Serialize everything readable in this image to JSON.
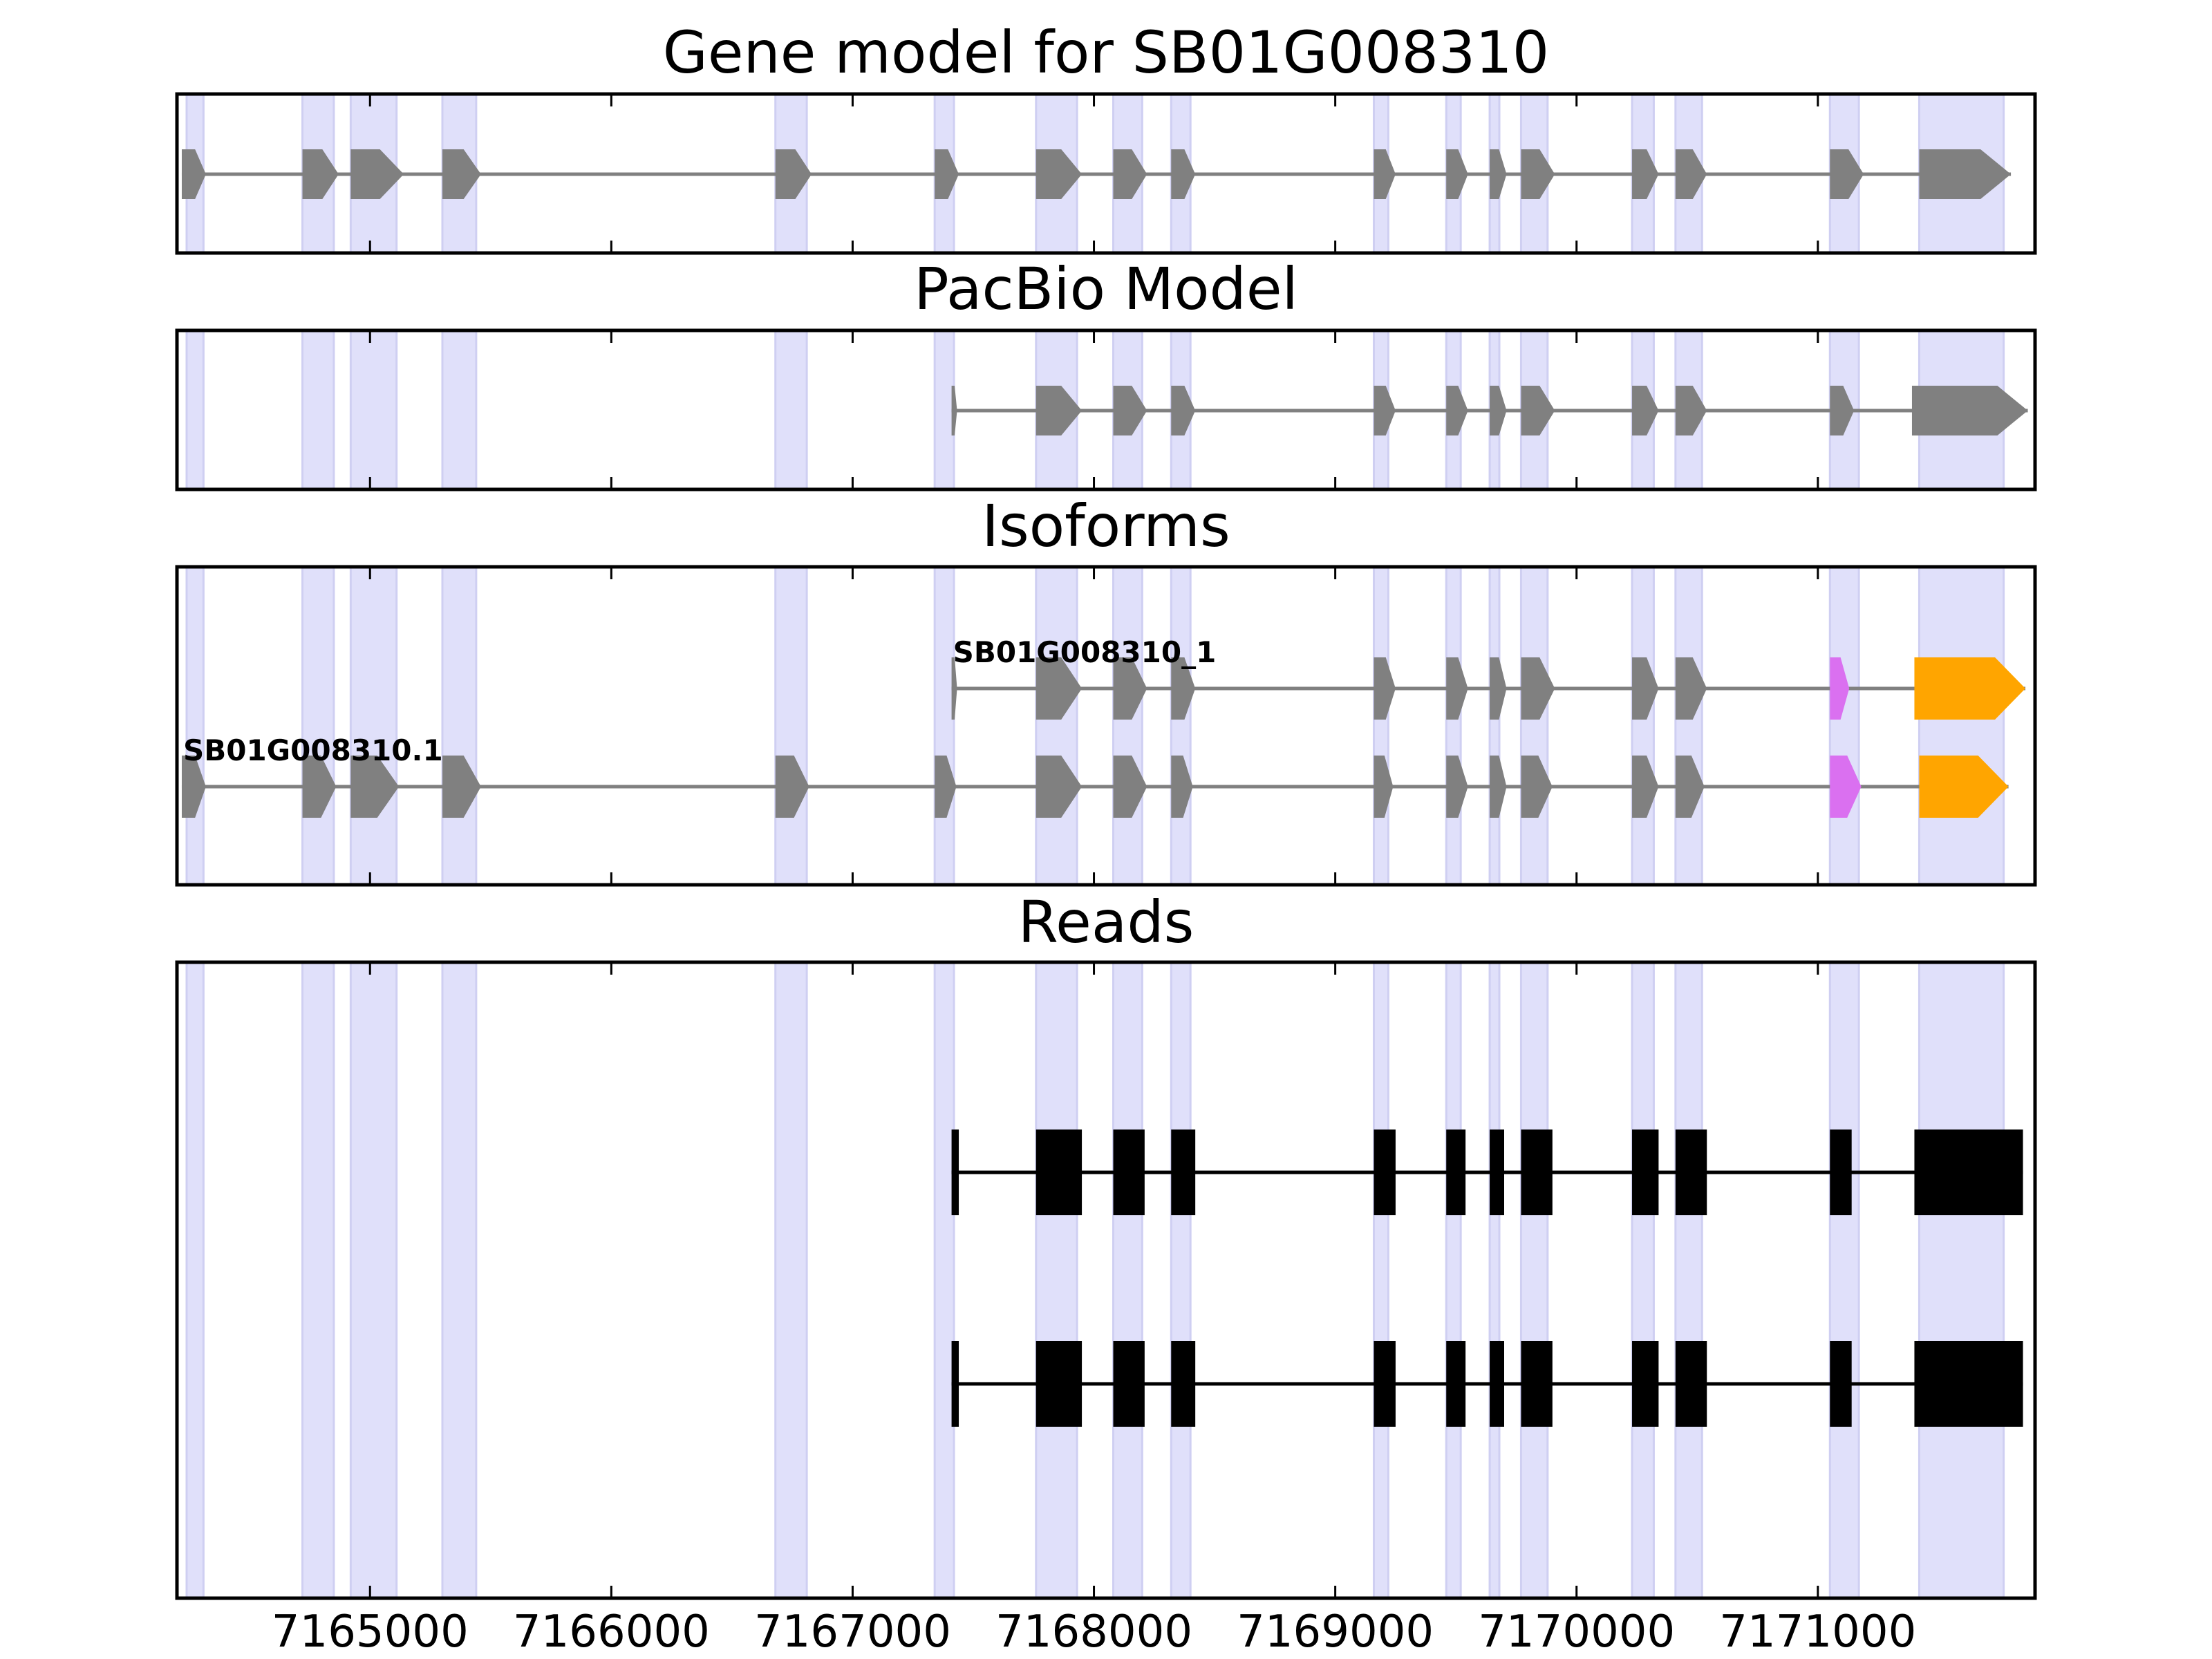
{
  "chart_data": {
    "type": "gene-structure",
    "xlim": [
      7164200,
      7171900
    ],
    "x_ticks": [
      7165000,
      7166000,
      7167000,
      7168000,
      7169000,
      7170000,
      7171000
    ],
    "x_tick_labels": [
      "7165000",
      "7166000",
      "7167000",
      "7168000",
      "7169000",
      "7170000",
      "7171000"
    ],
    "highlight_regions": [
      [
        7164240,
        7164310
      ],
      [
        7164720,
        7164850
      ],
      [
        7164920,
        7165110
      ],
      [
        7165300,
        7165440
      ],
      [
        7166680,
        7166810
      ],
      [
        7167340,
        7167420
      ],
      [
        7167760,
        7167930
      ],
      [
        7168080,
        7168200
      ],
      [
        7168320,
        7168400
      ],
      [
        7169160,
        7169220
      ],
      [
        7169460,
        7169520
      ],
      [
        7169640,
        7169680
      ],
      [
        7169770,
        7169880
      ],
      [
        7170230,
        7170320
      ],
      [
        7170410,
        7170520
      ],
      [
        7171050,
        7171170
      ],
      [
        7171420,
        7171770
      ]
    ],
    "colors": {
      "exon": "#808080",
      "intron": "#808080",
      "highlight": "#e0e0fa",
      "utr5": "#da70f0",
      "utr3": "#ffa500",
      "read": "#000000"
    },
    "panels": [
      {
        "title": "Gene model for SB01G008310",
        "tracks": [
          {
            "label": "",
            "style": "arrow",
            "exons": [
              [
                7164220,
                7164320,
                "exon"
              ],
              [
                7164720,
                7164870,
                "exon"
              ],
              [
                7164920,
                7165140,
                "exon"
              ],
              [
                7165300,
                7165460,
                "exon"
              ],
              [
                7166680,
                7166830,
                "exon"
              ],
              [
                7167340,
                7167440,
                "exon"
              ],
              [
                7167760,
                7167950,
                "exon"
              ],
              [
                7168080,
                7168220,
                "exon"
              ],
              [
                7168320,
                7168420,
                "exon"
              ],
              [
                7169160,
                7169250,
                "exon"
              ],
              [
                7169460,
                7169550,
                "exon"
              ],
              [
                7169640,
                7169710,
                "exon"
              ],
              [
                7169770,
                7169910,
                "exon"
              ],
              [
                7170230,
                7170340,
                "exon"
              ],
              [
                7170410,
                7170540,
                "exon"
              ],
              [
                7171050,
                7171190,
                "exon"
              ],
              [
                7171420,
                7171800,
                "exon"
              ]
            ]
          }
        ]
      },
      {
        "title": "PacBio Model",
        "tracks": [
          {
            "label": "",
            "style": "arrow",
            "exons": [
              [
                7167410,
                7167430,
                "exon"
              ],
              [
                7167760,
                7167950,
                "exon"
              ],
              [
                7168080,
                7168220,
                "exon"
              ],
              [
                7168320,
                7168420,
                "exon"
              ],
              [
                7169160,
                7169250,
                "exon"
              ],
              [
                7169460,
                7169550,
                "exon"
              ],
              [
                7169640,
                7169710,
                "exon"
              ],
              [
                7169770,
                7169910,
                "exon"
              ],
              [
                7170230,
                7170340,
                "exon"
              ],
              [
                7170410,
                7170540,
                "exon"
              ],
              [
                7171050,
                7171150,
                "exon"
              ],
              [
                7171390,
                7171870,
                "exon"
              ]
            ]
          }
        ]
      },
      {
        "title": "Isoforms",
        "tracks": [
          {
            "label": "SB01G008310_1",
            "style": "arrow",
            "exons": [
              [
                7167410,
                7167430,
                "exon"
              ],
              [
                7167760,
                7167950,
                "exon"
              ],
              [
                7168080,
                7168220,
                "exon"
              ],
              [
                7168320,
                7168420,
                "exon"
              ],
              [
                7169160,
                7169250,
                "exon"
              ],
              [
                7169460,
                7169550,
                "exon"
              ],
              [
                7169640,
                7169710,
                "exon"
              ],
              [
                7169770,
                7169910,
                "exon"
              ],
              [
                7170230,
                7170340,
                "exon"
              ],
              [
                7170410,
                7170540,
                "exon"
              ],
              [
                7171050,
                7171130,
                "utr5"
              ],
              [
                7171400,
                7171860,
                "utr3"
              ]
            ]
          },
          {
            "label": "SB01G008310.1",
            "style": "arrow",
            "exons": [
              [
                7164220,
                7164320,
                "exon"
              ],
              [
                7164720,
                7164860,
                "exon"
              ],
              [
                7164920,
                7165120,
                "exon"
              ],
              [
                7165300,
                7165460,
                "exon"
              ],
              [
                7166680,
                7166820,
                "exon"
              ],
              [
                7167340,
                7167430,
                "exon"
              ],
              [
                7167760,
                7167950,
                "exon"
              ],
              [
                7168080,
                7168220,
                "exon"
              ],
              [
                7168320,
                7168410,
                "exon"
              ],
              [
                7169160,
                7169240,
                "exon"
              ],
              [
                7169460,
                7169550,
                "exon"
              ],
              [
                7169640,
                7169710,
                "exon"
              ],
              [
                7169770,
                7169900,
                "exon"
              ],
              [
                7170230,
                7170340,
                "exon"
              ],
              [
                7170410,
                7170530,
                "exon"
              ],
              [
                7171050,
                7171180,
                "utr5"
              ],
              [
                7171420,
                7171790,
                "utr3"
              ]
            ]
          }
        ]
      },
      {
        "title": "Reads",
        "tracks": [
          {
            "label": "",
            "style": "block",
            "exons": [
              [
                7167410,
                7167440,
                "read"
              ],
              [
                7167760,
                7167950,
                "read"
              ],
              [
                7168080,
                7168210,
                "read"
              ],
              [
                7168320,
                7168420,
                "read"
              ],
              [
                7169160,
                7169250,
                "read"
              ],
              [
                7169460,
                7169540,
                "read"
              ],
              [
                7169640,
                7169700,
                "read"
              ],
              [
                7169770,
                7169900,
                "read"
              ],
              [
                7170230,
                7170340,
                "read"
              ],
              [
                7170410,
                7170540,
                "read"
              ],
              [
                7171050,
                7171140,
                "read"
              ],
              [
                7171400,
                7171850,
                "read"
              ]
            ]
          },
          {
            "label": "",
            "style": "block",
            "exons": [
              [
                7167410,
                7167440,
                "read"
              ],
              [
                7167760,
                7167950,
                "read"
              ],
              [
                7168080,
                7168210,
                "read"
              ],
              [
                7168320,
                7168420,
                "read"
              ],
              [
                7169160,
                7169250,
                "read"
              ],
              [
                7169460,
                7169540,
                "read"
              ],
              [
                7169640,
                7169700,
                "read"
              ],
              [
                7169770,
                7169900,
                "read"
              ],
              [
                7170230,
                7170340,
                "read"
              ],
              [
                7170410,
                7170540,
                "read"
              ],
              [
                7171050,
                7171140,
                "read"
              ],
              [
                7171400,
                7171850,
                "read"
              ]
            ]
          }
        ]
      }
    ]
  }
}
